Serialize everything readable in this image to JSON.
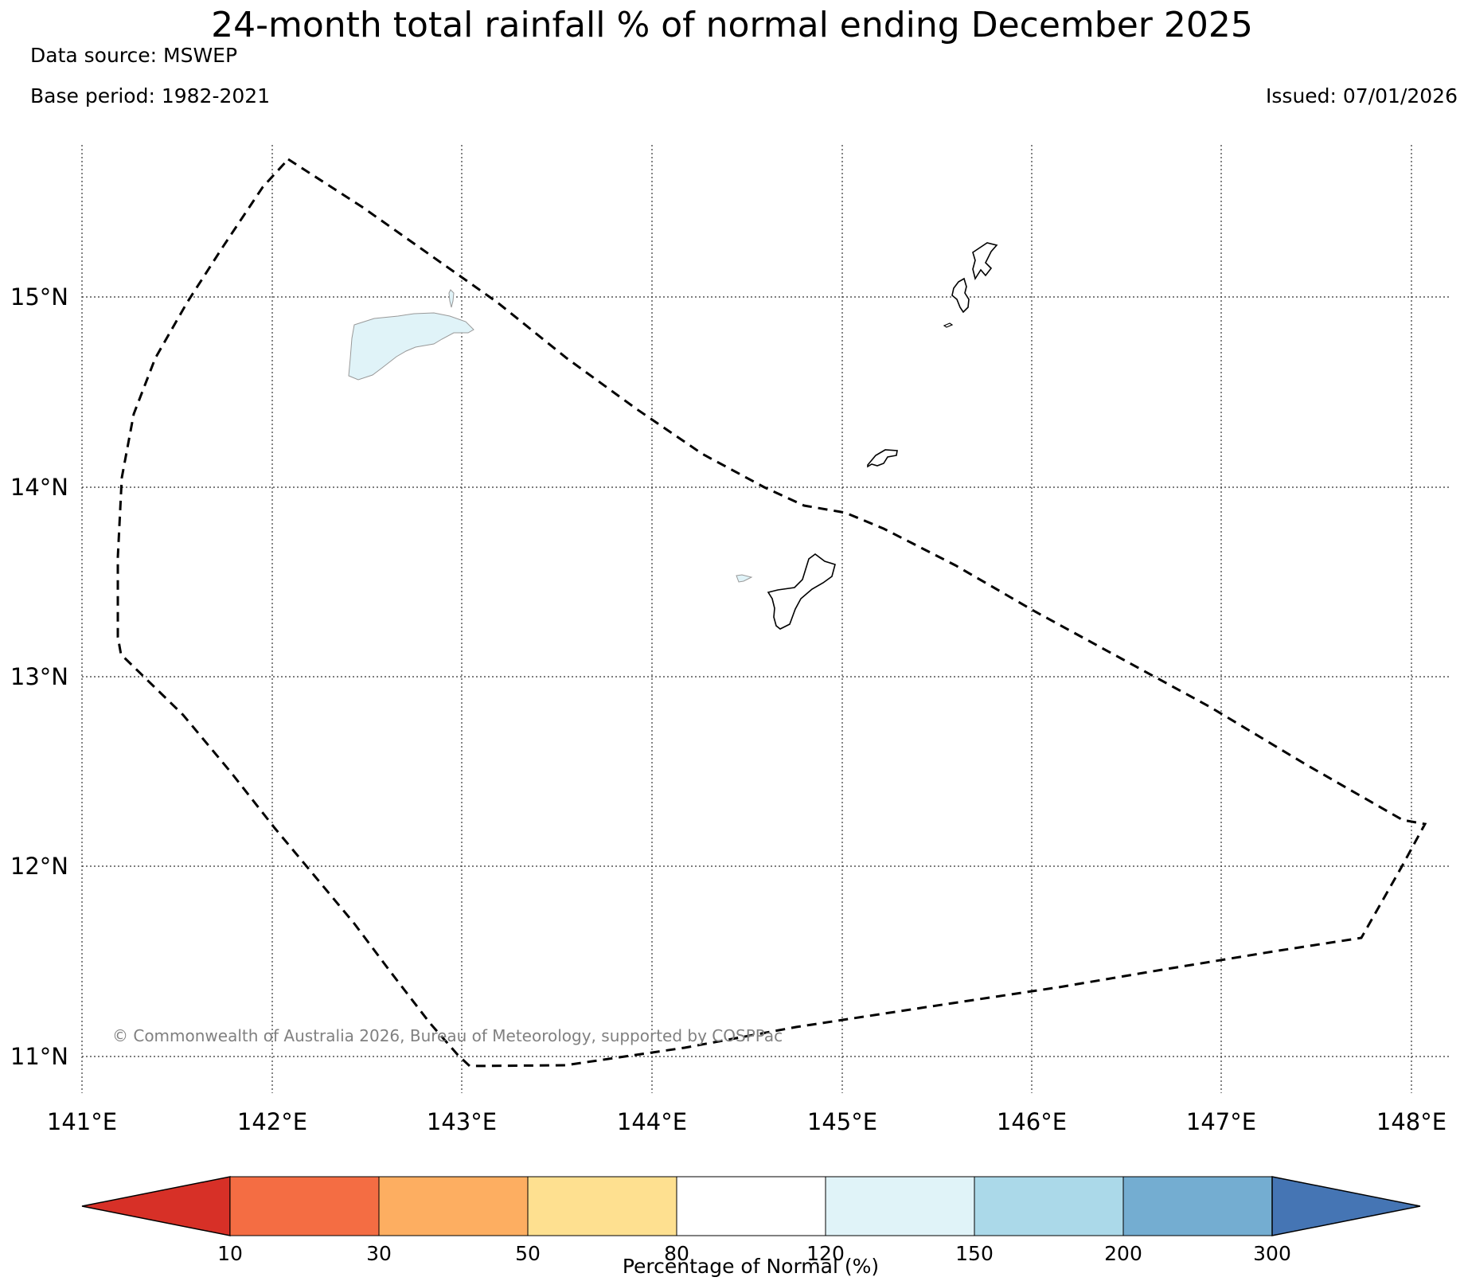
{
  "title": "24-month total rainfall % of normal ending December 2025",
  "data_source": "Data source: MSWEP",
  "base_period": "Base period: 1982-2021",
  "issued": "Issued: 07/01/2026",
  "copyright": "© Commonwealth of Australia 2026, Bureau of Meteorology, supported by COSPPac",
  "map": {
    "lon_labels": [
      "141°E",
      "142°E",
      "143°E",
      "144°E",
      "145°E",
      "146°E",
      "147°E",
      "148°E"
    ],
    "lat_labels": [
      "15°N",
      "14°N",
      "13°N",
      "12°N",
      "11°N"
    ]
  },
  "colorbar": {
    "label": "Percentage of Normal (%)",
    "ticks": [
      "10",
      "30",
      "50",
      "80",
      "120",
      "150",
      "200",
      "300"
    ],
    "colors": [
      "#d73027",
      "#f46d43",
      "#fdae61",
      "#fee090",
      "#ffffff",
      "#e0f3f8",
      "#abd9e9",
      "#74add1",
      "#4575b4"
    ],
    "land_fill": "#e0f3f8",
    "boundary_color": "#000000"
  }
}
